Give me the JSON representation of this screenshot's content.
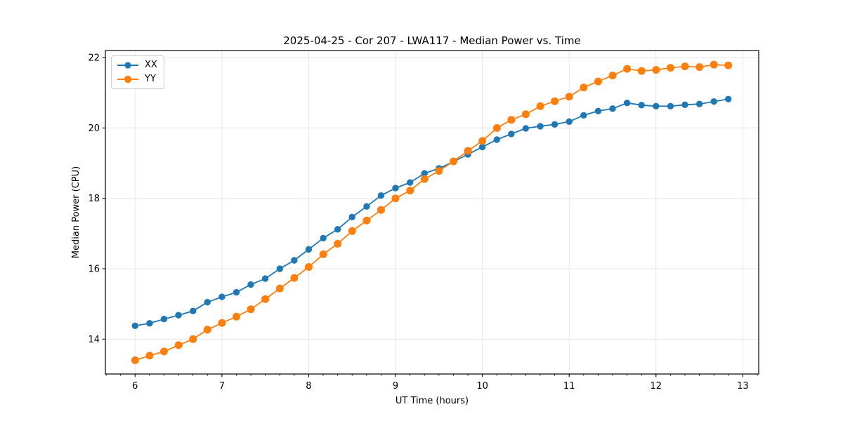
{
  "figure": {
    "title": "2025-04-25 - Cor 207 - LWA117 - Median Power vs. Time"
  },
  "chart_data": {
    "type": "line",
    "title": "2025-04-25 - Cor 207 - LWA117 - Median Power vs. Time",
    "xlabel": "UT Time (hours)",
    "ylabel": "Median Power (CPU)",
    "xlim": [
      5.658,
      13.183
    ],
    "ylim": [
      13.01,
      22.2
    ],
    "xticks": [
      6,
      7,
      8,
      9,
      10,
      11,
      12,
      13
    ],
    "yticks": [
      14,
      16,
      18,
      20,
      22
    ],
    "x_minor_interval": 0.166667,
    "grid": "major",
    "legend_position": "upper left",
    "x": [
      6.0,
      6.167,
      6.333,
      6.5,
      6.667,
      6.833,
      7.0,
      7.167,
      7.333,
      7.5,
      7.667,
      7.833,
      8.0,
      8.167,
      8.333,
      8.5,
      8.667,
      8.833,
      9.0,
      9.167,
      9.333,
      9.5,
      9.667,
      9.833,
      10.0,
      10.167,
      10.333,
      10.5,
      10.667,
      10.833,
      11.0,
      11.167,
      11.333,
      11.5,
      11.667,
      11.833,
      12.0,
      12.167,
      12.333,
      12.5,
      12.667,
      12.833
    ],
    "series": [
      {
        "name": "XX",
        "color": "#1f77b4",
        "values": [
          14.38,
          14.45,
          14.57,
          14.68,
          14.8,
          15.05,
          15.2,
          15.33,
          15.55,
          15.72,
          16.0,
          16.24,
          16.55,
          16.87,
          17.12,
          17.47,
          17.77,
          18.08,
          18.29,
          18.45,
          18.71,
          18.85,
          19.04,
          19.25,
          19.46,
          19.67,
          19.83,
          19.99,
          20.05,
          20.1,
          20.18,
          20.36,
          20.48,
          20.55,
          20.71,
          20.65,
          20.62,
          20.62,
          20.66,
          20.68,
          20.75,
          20.82
        ]
      },
      {
        "name": "YY",
        "color": "#ff7f0e",
        "values": [
          13.4,
          13.53,
          13.65,
          13.83,
          14.0,
          14.27,
          14.46,
          14.64,
          14.85,
          15.14,
          15.44,
          15.74,
          16.05,
          16.41,
          16.71,
          17.07,
          17.37,
          17.67,
          18.0,
          18.22,
          18.55,
          18.78,
          19.05,
          19.35,
          19.63,
          20.0,
          20.23,
          20.39,
          20.62,
          20.76,
          20.89,
          21.15,
          21.32,
          21.49,
          21.68,
          21.62,
          21.65,
          21.71,
          21.75,
          21.73,
          21.8,
          21.78
        ]
      }
    ]
  }
}
